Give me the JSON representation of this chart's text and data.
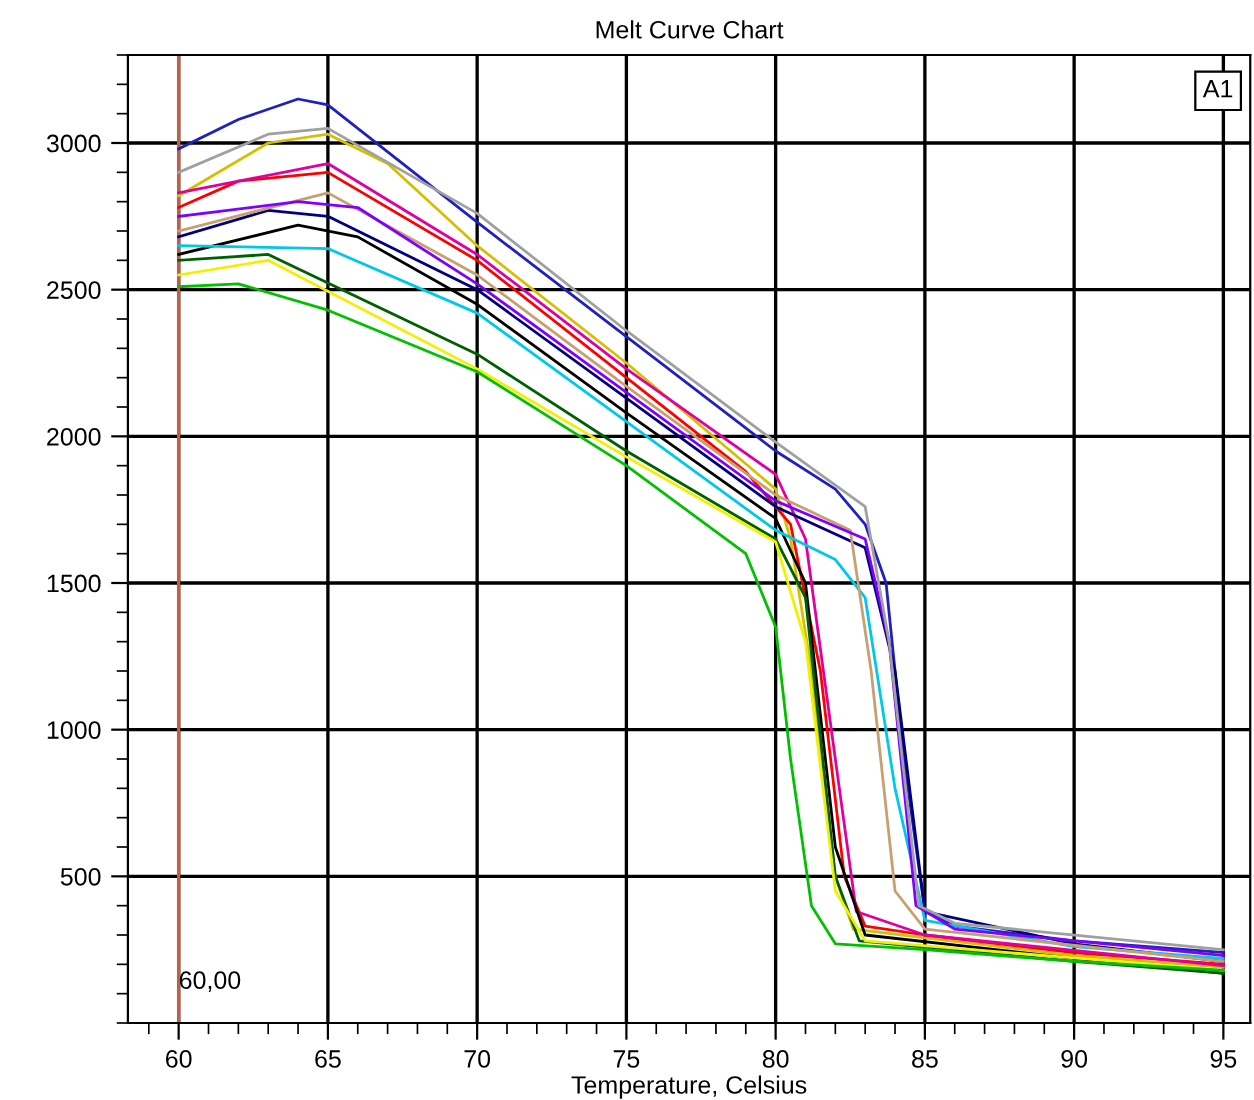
{
  "chart_data": {
    "type": "line",
    "title": "Melt Curve Chart",
    "xlabel": "Temperature, Celsius",
    "xlim": [
      58.3,
      95.9
    ],
    "ylim": [
      0,
      3300
    ],
    "xticks": [
      60,
      65,
      70,
      75,
      80,
      85,
      90,
      95
    ],
    "yticks": [
      500,
      1000,
      1500,
      2000,
      2500,
      3000
    ],
    "grid": true,
    "legend": false,
    "marker": "none",
    "line_style": "solid",
    "ref_lines": [
      {
        "axis": "x",
        "value": 60,
        "label": "60,00",
        "color": "#c06040"
      }
    ],
    "annotations": [
      "A1"
    ],
    "series": [
      {
        "color": "#2020c0",
        "x": [
          60,
          62,
          64,
          65,
          66,
          70,
          75,
          80,
          82,
          83,
          83.7,
          84.3,
          85,
          86,
          90,
          95
        ],
        "values": [
          2980,
          3080,
          3150,
          3130,
          3050,
          2730,
          2340,
          1950,
          1820,
          1700,
          1500,
          900,
          380,
          330,
          280,
          240
        ]
      },
      {
        "color": "#d4c000",
        "x": [
          60,
          63,
          65,
          67,
          70,
          75,
          80,
          80.5,
          81.2,
          82,
          82.6,
          85,
          90,
          95
        ],
        "values": [
          2820,
          3000,
          3030,
          2930,
          2650,
          2250,
          1820,
          1650,
          1200,
          500,
          320,
          290,
          230,
          190
        ]
      },
      {
        "color": "#ff0000",
        "x": [
          60,
          62,
          65,
          70,
          75,
          79,
          80.5,
          81.5,
          82.3,
          83,
          85,
          90,
          95
        ],
        "values": [
          2780,
          2870,
          2900,
          2600,
          2200,
          1880,
          1700,
          1200,
          500,
          330,
          300,
          240,
          200
        ]
      },
      {
        "color": "#e000a0",
        "x": [
          60,
          65,
          70,
          75,
          80,
          81,
          82,
          82.7,
          85,
          95
        ],
        "values": [
          2830,
          2930,
          2620,
          2230,
          1870,
          1650,
          900,
          380,
          300,
          195
        ]
      },
      {
        "color": "#000080",
        "x": [
          60,
          63,
          65,
          70,
          75,
          80,
          83,
          84,
          85,
          90,
          95
        ],
        "values": [
          2680,
          2770,
          2750,
          2500,
          2130,
          1760,
          1620,
          1200,
          380,
          270,
          210
        ]
      },
      {
        "color": "#000000",
        "x": [
          60,
          64,
          66,
          70,
          75,
          80,
          81,
          82,
          83,
          90,
          95
        ],
        "values": [
          2620,
          2720,
          2680,
          2450,
          2080,
          1720,
          1500,
          600,
          300,
          220,
          170
        ]
      },
      {
        "color": "#00c8e8",
        "x": [
          60,
          65,
          70,
          75,
          80,
          82,
          83,
          84,
          85,
          90,
          95
        ],
        "values": [
          2650,
          2640,
          2420,
          2050,
          1680,
          1580,
          1450,
          800,
          350,
          260,
          220
        ]
      },
      {
        "color": "#c8a070",
        "x": [
          60,
          65,
          70,
          75,
          80,
          82.5,
          83.2,
          84,
          85,
          95
        ],
        "values": [
          2700,
          2830,
          2550,
          2170,
          1800,
          1680,
          1200,
          450,
          320,
          210
        ]
      },
      {
        "color": "#006000",
        "x": [
          60,
          63,
          70,
          75,
          80,
          81,
          82,
          82.8,
          90,
          95
        ],
        "values": [
          2600,
          2620,
          2280,
          1950,
          1650,
          1450,
          500,
          280,
          210,
          170
        ]
      },
      {
        "color": "#f0f000",
        "x": [
          60,
          63,
          70,
          75,
          80,
          81,
          82,
          83,
          95
        ],
        "values": [
          2550,
          2600,
          2230,
          1930,
          1640,
          1300,
          450,
          280,
          180
        ]
      },
      {
        "color": "#00c000",
        "x": [
          60,
          62,
          65,
          70,
          75,
          79,
          80,
          80.5,
          81.2,
          82,
          85,
          90,
          95
        ],
        "values": [
          2510,
          2520,
          2430,
          2220,
          1900,
          1600,
          1350,
          900,
          400,
          270,
          250,
          210,
          180
        ]
      },
      {
        "color": "#8000ff",
        "x": [
          60,
          64,
          66,
          70,
          75,
          80,
          83,
          83.8,
          84.7,
          86,
          95
        ],
        "values": [
          2750,
          2800,
          2780,
          2520,
          2150,
          1780,
          1650,
          1300,
          400,
          320,
          230
        ]
      },
      {
        "color": "#a0a0a0",
        "x": [
          60,
          63,
          65,
          70,
          75,
          80,
          83,
          83.8,
          84.8,
          86,
          95
        ],
        "values": [
          2900,
          3030,
          3050,
          2760,
          2360,
          1980,
          1760,
          1300,
          400,
          340,
          250
        ]
      }
    ]
  }
}
